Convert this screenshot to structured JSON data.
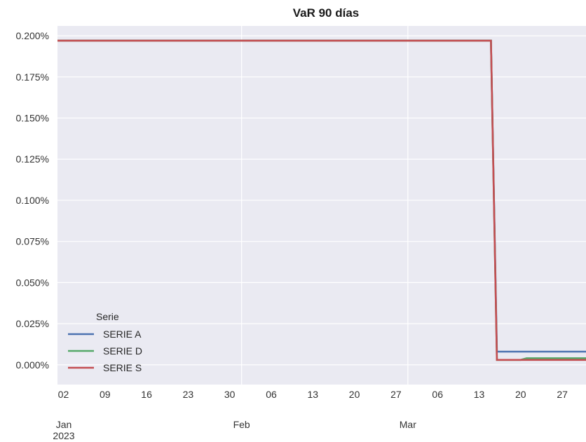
{
  "chart_data": {
    "type": "line",
    "title": "VaR 90 días",
    "xlabel": "",
    "ylabel": "",
    "x_range": [
      "2023-01-01",
      "2023-03-31"
    ],
    "ylim": [
      -0.012,
      0.206
    ],
    "y_unit": "%",
    "y_ticks": [
      0.0,
      0.025,
      0.05,
      0.075,
      0.1,
      0.125,
      0.15,
      0.175,
      0.2
    ],
    "y_tick_labels": [
      "0.000%",
      "0.025%",
      "0.050%",
      "0.075%",
      "0.100%",
      "0.125%",
      "0.150%",
      "0.175%",
      "0.200%"
    ],
    "x_minor_ticks": [
      {
        "date": "2023-01-02",
        "label": "02"
      },
      {
        "date": "2023-01-09",
        "label": "09"
      },
      {
        "date": "2023-01-16",
        "label": "16"
      },
      {
        "date": "2023-01-23",
        "label": "23"
      },
      {
        "date": "2023-01-30",
        "label": "30"
      },
      {
        "date": "2023-02-06",
        "label": "06"
      },
      {
        "date": "2023-02-13",
        "label": "13"
      },
      {
        "date": "2023-02-20",
        "label": "20"
      },
      {
        "date": "2023-02-27",
        "label": "27"
      },
      {
        "date": "2023-03-06",
        "label": "06"
      },
      {
        "date": "2023-03-13",
        "label": "13"
      },
      {
        "date": "2023-03-20",
        "label": "20"
      },
      {
        "date": "2023-03-27",
        "label": "27"
      }
    ],
    "x_major_ticks": [
      {
        "date": "2023-02-01",
        "label": "Feb"
      },
      {
        "date": "2023-03-01",
        "label": "Mar"
      }
    ],
    "x_first_major": {
      "date": "2023-01-01",
      "label": "Jan",
      "sublabel": "2023"
    },
    "grid": true,
    "background": "#eaeaf2",
    "legend": {
      "title": "Serie",
      "placement": "lower-left"
    },
    "series": [
      {
        "name": "SERIE A",
        "color": "#4c72b0",
        "points": [
          [
            "2023-01-01",
            0.197
          ],
          [
            "2023-03-15",
            0.197
          ],
          [
            "2023-03-16",
            0.008
          ],
          [
            "2023-03-31",
            0.008
          ]
        ]
      },
      {
        "name": "SERIE D",
        "color": "#55a868",
        "points": [
          [
            "2023-01-01",
            0.197
          ],
          [
            "2023-03-15",
            0.197
          ],
          [
            "2023-03-16",
            0.003
          ],
          [
            "2023-03-20",
            0.003
          ],
          [
            "2023-03-21",
            0.004
          ],
          [
            "2023-03-31",
            0.004
          ]
        ]
      },
      {
        "name": "SERIE S",
        "color": "#c44e52",
        "points": [
          [
            "2023-01-01",
            0.197
          ],
          [
            "2023-03-15",
            0.197
          ],
          [
            "2023-03-16",
            0.003
          ],
          [
            "2023-03-31",
            0.003
          ]
        ]
      }
    ]
  }
}
